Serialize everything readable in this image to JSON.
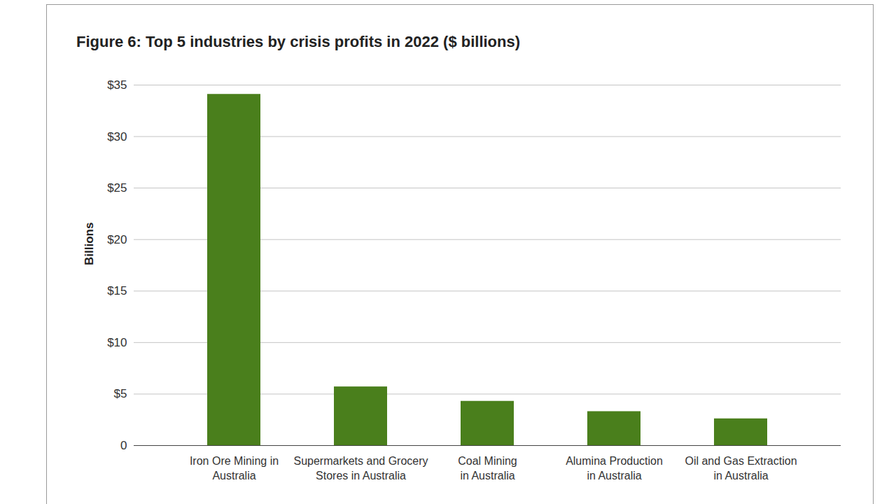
{
  "chart_data": {
    "type": "bar",
    "title": "Figure 6: Top 5 industries by crisis profits in 2022 ($ billions)",
    "y_label": "Billions",
    "categories": [
      "Iron Ore Mining in\nAustralia",
      "Supermarkets and Grocery\nStores in Australia",
      "Coal Mining\nin Australia",
      "Alumina Production\nin Australia",
      "Oil and Gas Extraction\nin Australia"
    ],
    "values": [
      34.1,
      5.7,
      4.3,
      3.3,
      2.6
    ],
    "color": "#4a7f1c",
    "ylim": [
      0,
      35
    ],
    "yticks": [
      0,
      {
        "value": 5,
        "label": "$5"
      },
      {
        "value": 10,
        "label": "$10"
      },
      {
        "value": 15,
        "label": "$15"
      },
      {
        "value": 20,
        "label": "$20"
      },
      {
        "value": 25,
        "label": "$25"
      },
      {
        "value": 30,
        "label": "$30"
      },
      {
        "value": 35,
        "label": "$35"
      }
    ],
    "grid": true
  }
}
